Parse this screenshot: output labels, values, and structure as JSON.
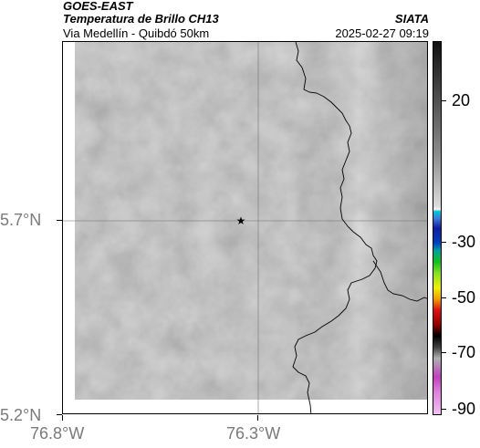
{
  "header": {
    "satellite": "GOES-EAST",
    "product": "Temperatura de Brillo CH13",
    "region": "Via Medellín - Quibdó 50km",
    "source": "SIATA",
    "datetime": "2025-02-27 09:19"
  },
  "map": {
    "longitude_ticks": [
      "76.8°W",
      "76.3°W"
    ],
    "latitude_ticks": [
      "5.7°N",
      "5.2°N"
    ],
    "marker": "star-icon",
    "gridlines": true
  },
  "colorbar": {
    "labels": [
      "20",
      "-30",
      "-50",
      "-70",
      "-90"
    ],
    "colors": {
      "warm_gray": "#8c8c8c",
      "cold_gray": "#dcdcdc",
      "cyan": "#00c8d8",
      "blue": "#1020a0",
      "green": "#10c020",
      "yellow": "#f0f000",
      "red": "#e01010",
      "black": "#000000",
      "magenta": "#c040c0"
    }
  }
}
